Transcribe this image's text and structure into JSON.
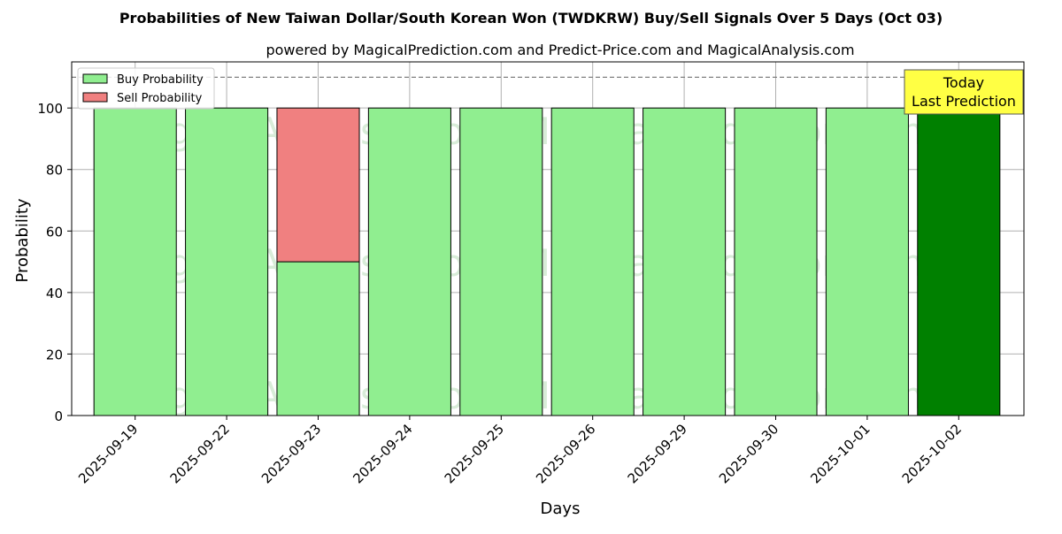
{
  "chart_data": {
    "type": "bar",
    "stacked": true,
    "title": "Probabilities of New Taiwan Dollar/South Korean Won (TWDKRW) Buy/Sell Signals Over 5 Days (Oct 03)",
    "subtitle": "powered by MagicalPrediction.com and Predict-Price.com and MagicalAnalysis.com",
    "xlabel": "Days",
    "ylabel": "Probability",
    "ylim": [
      0,
      115
    ],
    "yticks": [
      0,
      20,
      40,
      60,
      80,
      100
    ],
    "grid": true,
    "legend_position": "top-left",
    "categories": [
      "2025-09-19",
      "2025-09-22",
      "2025-09-23",
      "2025-09-24",
      "2025-09-25",
      "2025-09-26",
      "2025-09-29",
      "2025-09-30",
      "2025-10-01",
      "2025-10-02"
    ],
    "series": [
      {
        "name": "Buy Probability",
        "color": "#90ee90",
        "values": [
          100,
          100,
          50,
          100,
          100,
          100,
          100,
          100,
          100,
          100
        ]
      },
      {
        "name": "Sell Probability",
        "color": "#f08080",
        "values": [
          0,
          0,
          50,
          0,
          0,
          0,
          0,
          0,
          0,
          0
        ]
      }
    ],
    "highlight": {
      "category": "2025-10-02",
      "color": "#008000"
    },
    "reference_line": {
      "y": 110,
      "style": "dashed",
      "color": "#808080"
    },
    "annotation": {
      "lines": [
        "Today",
        "Last Prediction"
      ],
      "background": "#ffff44"
    },
    "watermarks": [
      "MagicalAnalysis.com",
      "MagicalPrediction.com"
    ]
  }
}
